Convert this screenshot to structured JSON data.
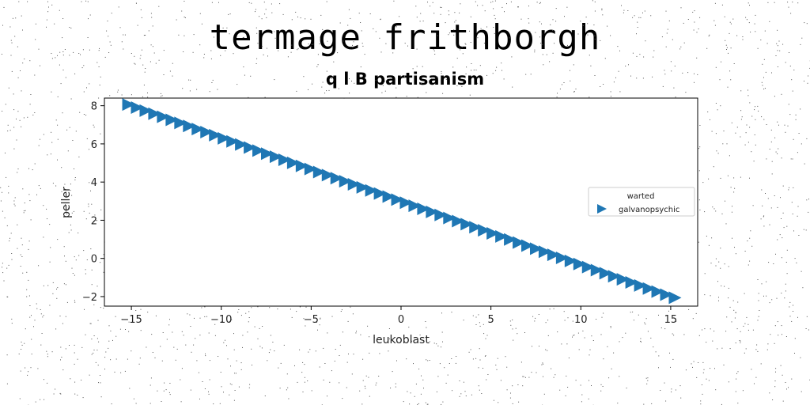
{
  "title": "termage frithborgh",
  "chart_data": {
    "type": "scatter",
    "title": "q l B partisanism",
    "xlabel": "leukoblast",
    "ylabel": "peller",
    "xlim": [
      -16.5,
      16.5
    ],
    "ylim": [
      -2.5,
      8.4
    ],
    "xticks": [
      -15,
      -10,
      -5,
      0,
      5,
      10,
      15
    ],
    "yticks": [
      -2,
      0,
      2,
      4,
      6,
      8
    ],
    "grid": false,
    "legend": {
      "title": "warted",
      "placement": "center-right"
    },
    "series": [
      {
        "name": "galvanopsychic",
        "marker": "triangle-right",
        "color": "#1f77b4",
        "x_start": -15.2,
        "x_end": 15.2,
        "count": 64,
        "slope": -0.333,
        "intercept": 3.0
      }
    ]
  }
}
